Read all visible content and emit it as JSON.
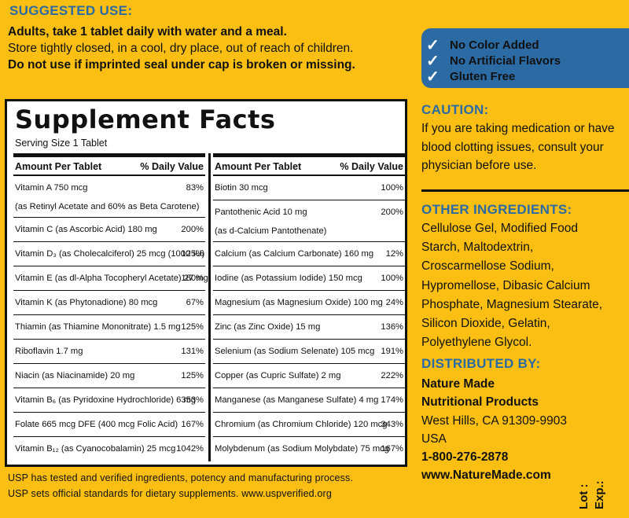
{
  "suggested_use": {
    "heading": "SUGGESTED USE:",
    "line1": "Adults, take 1 tablet daily with water and a meal.",
    "line2": "Store tightly closed, in a cool, dry place, out of reach of children.",
    "line3": "Do not use if imprinted seal under cap is broken or missing."
  },
  "badges": [
    {
      "icon": "check-icon",
      "label": "No Color Added"
    },
    {
      "icon": "check-icon",
      "label": "No Artificial Flavors"
    },
    {
      "icon": "check-icon",
      "label": "Gluten Free"
    }
  ],
  "facts": {
    "title": "Supplement Facts",
    "serving": "Serving Size 1 Tablet",
    "col_amount": "Amount Per Tablet",
    "col_dv": "% Daily Value",
    "left": [
      {
        "name": "Vitamin A  750 mcg",
        "sub": "(as Retinyl Acetate and 60% as Beta Carotene)",
        "dv": "83%"
      },
      {
        "name": "Vitamin C (as Ascorbic Acid)  180 mg",
        "dv": "200%"
      },
      {
        "name": "Vitamin D₃ (as Cholecalciferol) 25 mcg (1000 IU)",
        "dv": "125%"
      },
      {
        "name": "Vitamin E (as dl-Alpha Tocopheryl Acetate)  27 mg",
        "dv": "180%"
      },
      {
        "name": "Vitamin K (as Phytonadione)  80 mcg",
        "dv": "67%"
      },
      {
        "name": "Thiamin (as Thiamine Mononitrate)  1.5 mg",
        "dv": "125%"
      },
      {
        "name": "Riboflavin  1.7 mg",
        "dv": "131%"
      },
      {
        "name": "Niacin (as Niacinamide)  20 mg",
        "dv": "125%"
      },
      {
        "name": "Vitamin B₆ (as Pyridoxine Hydrochloride)  6 mg",
        "dv": "353%"
      },
      {
        "name": "Folate  665 mcg DFE (400 mcg Folic Acid)",
        "dv": "167%"
      },
      {
        "name": "Vitamin B₁₂ (as Cyanocobalamin)  25 mcg",
        "dv": "1042%"
      }
    ],
    "right": [
      {
        "name": "Biotin  30 mcg",
        "dv": "100%"
      },
      {
        "name": "Pantothenic Acid  10 mg",
        "sub": "(as d-Calcium Pantothenate)",
        "dv": "200%"
      },
      {
        "name": "Calcium (as Calcium Carbonate)  160 mg",
        "dv": "12%"
      },
      {
        "name": "Iodine (as Potassium Iodide)  150 mcg",
        "dv": "100%"
      },
      {
        "name": "Magnesium (as Magnesium Oxide)  100 mg",
        "dv": "24%"
      },
      {
        "name": "Zinc (as Zinc Oxide)  15 mg",
        "dv": "136%"
      },
      {
        "name": "Selenium (as Sodium Selenate)  105 mcg",
        "dv": "191%"
      },
      {
        "name": "Copper (as Cupric Sulfate)  2 mg",
        "dv": "222%"
      },
      {
        "name": "Manganese (as Manganese Sulfate)  4 mg",
        "dv": "174%"
      },
      {
        "name": "Chromium (as Chromium Chloride)  120 mcg",
        "dv": "343%"
      },
      {
        "name": "Molybdenum (as Sodium Molybdate)  75 mcg",
        "dv": "167%"
      }
    ]
  },
  "caution": {
    "heading": "CAUTION:",
    "text": "If you are taking medication or have blood clotting issues, consult your physician before use."
  },
  "ingredients": {
    "heading": "OTHER INGREDIENTS:",
    "lines": [
      "Cellulose Gel, Modified Food",
      "Starch, Maltodextrin,",
      "Croscarmellose Sodium,",
      "Hypromellose, Dibasic Calcium",
      "Phosphate, Magnesium Stearate,",
      "Silicon Dioxide, Gelatin,",
      "Polyethylene Glycol."
    ]
  },
  "distributor": {
    "heading": "DISTRIBUTED BY:",
    "name1": "Nature Made",
    "name2": "Nutritional Products",
    "address1": "West Hills, CA 91309-9903",
    "address2": "USA",
    "phone": "1-800-276-2878",
    "web": "www.NatureMade.com"
  },
  "usp": {
    "line1": "USP has tested and verified ingredients, potency and manufacturing process.",
    "line2": "USP sets official standards for dietary supplements. www.uspverified.org"
  },
  "lot_exp": {
    "lot": "Lot :",
    "exp": "Exp.:"
  },
  "colors": {
    "background": "#fbbf14",
    "accent_blue": "#2b6aa3"
  }
}
